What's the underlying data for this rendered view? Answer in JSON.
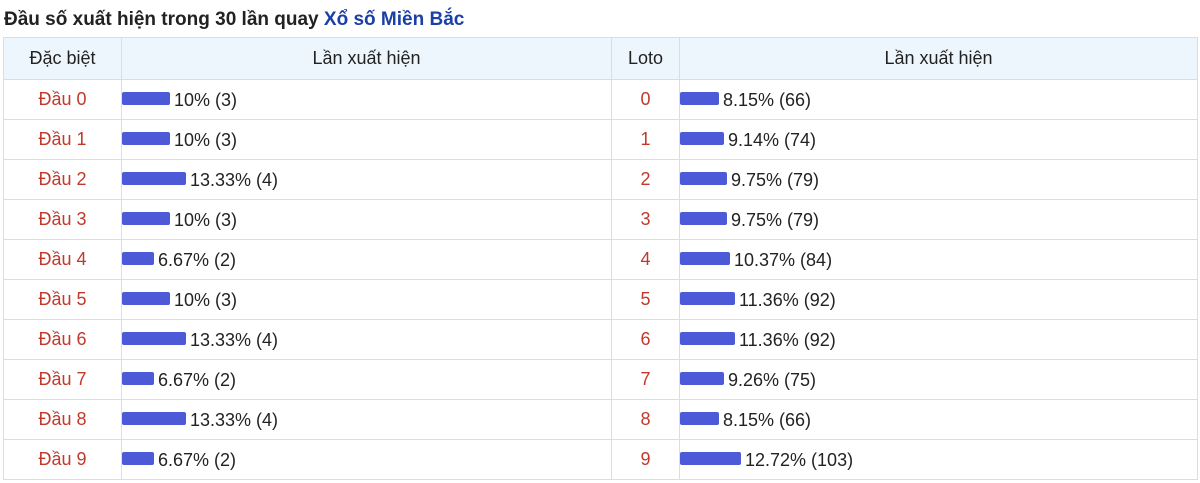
{
  "title": {
    "text": "Đầu số xuất hiện trong 30 lần quay",
    "link": "Xổ số Miền Bắc"
  },
  "colors": {
    "accent_link": "#1a3fa6",
    "label_red": "#c0392b",
    "bar_blue": "#4d5ad8",
    "header_bg": "#eef6fd"
  },
  "table": {
    "headers": {
      "special": "Đặc biệt",
      "count_left": "Lần xuất hiện",
      "loto": "Loto",
      "count_right": "Lần xuất hiện"
    },
    "rows": [
      {
        "label": "Đầu 0",
        "left_pct": 10,
        "left_text": "10% (3)",
        "loto": "0",
        "right_pct": 8.15,
        "right_text": "8.15% (66)"
      },
      {
        "label": "Đầu 1",
        "left_pct": 10,
        "left_text": "10% (3)",
        "loto": "1",
        "right_pct": 9.14,
        "right_text": "9.14% (74)"
      },
      {
        "label": "Đầu 2",
        "left_pct": 13.33,
        "left_text": "13.33% (4)",
        "loto": "2",
        "right_pct": 9.75,
        "right_text": "9.75% (79)"
      },
      {
        "label": "Đầu 3",
        "left_pct": 10,
        "left_text": "10% (3)",
        "loto": "3",
        "right_pct": 9.75,
        "right_text": "9.75% (79)"
      },
      {
        "label": "Đầu 4",
        "left_pct": 6.67,
        "left_text": "6.67% (2)",
        "loto": "4",
        "right_pct": 10.37,
        "right_text": "10.37% (84)"
      },
      {
        "label": "Đầu 5",
        "left_pct": 10,
        "left_text": "10% (3)",
        "loto": "5",
        "right_pct": 11.36,
        "right_text": "11.36% (92)"
      },
      {
        "label": "Đầu 6",
        "left_pct": 13.33,
        "left_text": "13.33% (4)",
        "loto": "6",
        "right_pct": 11.36,
        "right_text": "11.36% (92)"
      },
      {
        "label": "Đầu 7",
        "left_pct": 6.67,
        "left_text": "6.67% (2)",
        "loto": "7",
        "right_pct": 9.26,
        "right_text": "9.26% (75)"
      },
      {
        "label": "Đầu 8",
        "left_pct": 13.33,
        "left_text": "13.33% (4)",
        "loto": "8",
        "right_pct": 8.15,
        "right_text": "8.15% (66)"
      },
      {
        "label": "Đầu 9",
        "left_pct": 6.67,
        "left_text": "6.67% (2)",
        "loto": "9",
        "right_pct": 12.72,
        "right_text": "12.72% (103)"
      }
    ]
  }
}
